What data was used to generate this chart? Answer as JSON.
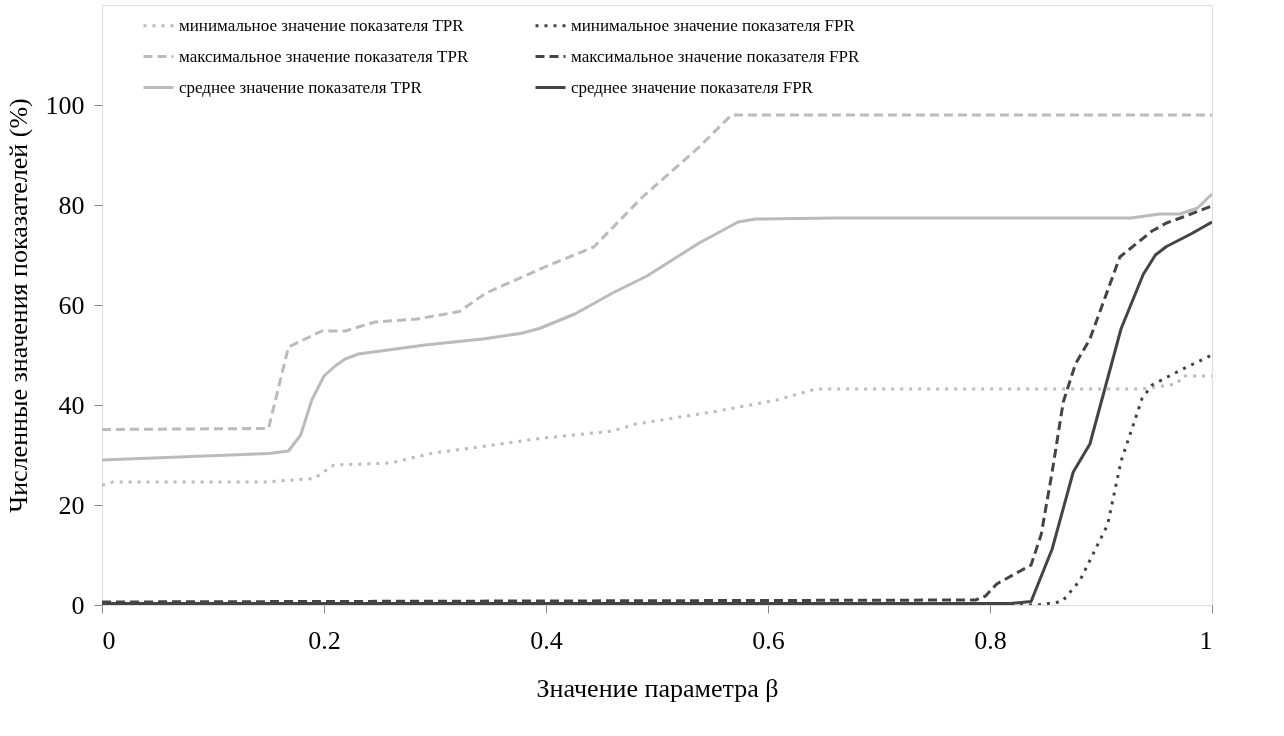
{
  "chart_data": {
    "type": "line",
    "xlabel": "Значение параметра β",
    "ylabel": "Численные значения показателей (%)",
    "xlim": [
      0,
      1
    ],
    "ylim": [
      0,
      120
    ],
    "xticks": [
      0,
      0.2,
      0.4,
      0.6,
      0.8,
      1
    ],
    "yticks": [
      0,
      20,
      40,
      60,
      80,
      100
    ],
    "grid": false,
    "legend": "top",
    "marker": "none",
    "series": [
      {
        "name": "минимальное значение показателя TPR",
        "color": "#bbbbbb",
        "line_style": "dotted",
        "x": [
          0,
          0.01,
          0.146,
          0.191,
          0.209,
          0.26,
          0.298,
          0.336,
          0.394,
          0.46,
          0.481,
          0.538,
          0.555,
          0.608,
          0.643,
          0.937,
          0.968,
          0.974,
          1
        ],
        "values": [
          24.0,
          24.6,
          24.6,
          25.3,
          28.0,
          28.4,
          30.4,
          31.5,
          33.3,
          34.8,
          36.2,
          38.2,
          38.8,
          41.0,
          43.2,
          43.2,
          44.2,
          45.8,
          45.8
        ]
      },
      {
        "name": "максимальное значение показателя TPR",
        "color": "#bbbbbb",
        "line_style": "dashed",
        "x": [
          0,
          0.15,
          0.168,
          0.198,
          0.219,
          0.246,
          0.284,
          0.322,
          0.346,
          0.401,
          0.443,
          0.487,
          0.538,
          0.567,
          1
        ],
        "values": [
          35.1,
          35.3,
          51.6,
          54.8,
          54.8,
          56.6,
          57.2,
          58.7,
          62.4,
          67.8,
          71.6,
          81.6,
          91.6,
          98.0,
          98.0
        ]
      },
      {
        "name": "среднее значение показателя TPR",
        "color": "#bbbbbb",
        "line_style": "solid",
        "x": [
          0,
          0.15,
          0.168,
          0.179,
          0.189,
          0.2,
          0.21,
          0.219,
          0.231,
          0.291,
          0.343,
          0.377,
          0.394,
          0.426,
          0.46,
          0.491,
          0.538,
          0.573,
          0.589,
          0.661,
          0.927,
          0.953,
          0.971,
          0.987,
          1
        ],
        "values": [
          29.0,
          30.3,
          30.8,
          34.0,
          41.0,
          45.8,
          47.8,
          49.2,
          50.2,
          52.0,
          53.2,
          54.3,
          55.3,
          58.2,
          62.4,
          65.8,
          72.4,
          76.6,
          77.2,
          77.4,
          77.4,
          78.2,
          78.2,
          79.4,
          82.2
        ]
      },
      {
        "name": "минимальное значение показателя FPR",
        "color": "#444444",
        "line_style": "dotted",
        "x": [
          0,
          0.843,
          0.865,
          0.881,
          0.906,
          0.918,
          0.937,
          0.946,
          0.971,
          1
        ],
        "values": [
          0,
          0,
          0.7,
          4.9,
          16.1,
          28.7,
          41.3,
          44.0,
          46.9,
          50.0
        ]
      },
      {
        "name": "максимальное значение показателя FPR",
        "color": "#444444",
        "line_style": "dashed",
        "x": [
          0,
          0.787,
          0.796,
          0.806,
          0.837,
          0.846,
          0.856,
          0.866,
          0.877,
          0.89,
          0.917,
          0.927,
          0.946,
          0.959,
          0.974,
          1
        ],
        "values": [
          0.6,
          1.0,
          1.8,
          4.2,
          8.0,
          14.0,
          26.6,
          40.6,
          48.2,
          53.2,
          69.6,
          71.4,
          74.8,
          76.4,
          77.6,
          79.8
        ]
      },
      {
        "name": "среднее значение показателя FPR",
        "color": "#444444",
        "line_style": "solid",
        "x": [
          0,
          0.818,
          0.837,
          0.856,
          0.875,
          0.89,
          0.918,
          0.938,
          0.949,
          0.959,
          0.981,
          1
        ],
        "values": [
          0.3,
          0.3,
          0.7,
          11.2,
          26.6,
          32.2,
          55.2,
          66.1,
          70.0,
          71.7,
          74.2,
          76.6
        ]
      }
    ]
  }
}
